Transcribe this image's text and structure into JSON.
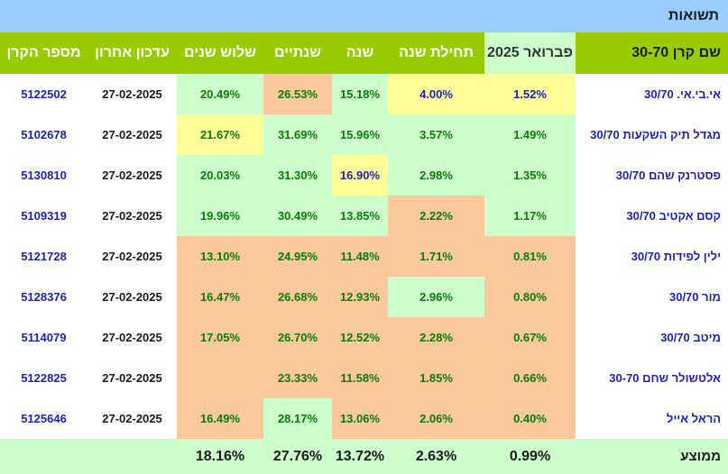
{
  "title": "תשואות",
  "headers": {
    "name": "שם קרן 30-70",
    "feb": "פברואר 2025",
    "ytd": "תחילת שנה",
    "y1": "שנה",
    "y2": "שנתיים",
    "y3": "שלוש שנים",
    "updated": "עדכון אחרון",
    "fund_no": "מספר הקרן"
  },
  "rows": [
    {
      "name": "אי.בי.אי. 30/70",
      "feb": "1.52%",
      "ytd": "4.00%",
      "y1": "15.18%",
      "y2": "26.53%",
      "y3": "20.49%",
      "updated": "27-02-2025",
      "fund_no": "5122502"
    },
    {
      "name": "מגדל תיק השקעות 30/70",
      "feb": "1.49%",
      "ytd": "3.57%",
      "y1": "15.96%",
      "y2": "31.69%",
      "y3": "21.67%",
      "updated": "27-02-2025",
      "fund_no": "5102678"
    },
    {
      "name": "פסטרנק שהם 30/70",
      "feb": "1.35%",
      "ytd": "2.98%",
      "y1": "16.90%",
      "y2": "31.30%",
      "y3": "20.03%",
      "updated": "27-02-2025",
      "fund_no": "5130810"
    },
    {
      "name": "קסם אקטיב 30/70",
      "feb": "1.17%",
      "ytd": "2.22%",
      "y1": "13.85%",
      "y2": "30.49%",
      "y3": "19.96%",
      "updated": "27-02-2025",
      "fund_no": "5109319"
    },
    {
      "name": "ילין לפידות 30/70",
      "feb": "0.81%",
      "ytd": "1.71%",
      "y1": "11.48%",
      "y2": "24.95%",
      "y3": "13.10%",
      "updated": "27-02-2025",
      "fund_no": "5121728"
    },
    {
      "name": "מור 30/70",
      "feb": "0.80%",
      "ytd": "2.96%",
      "y1": "12.93%",
      "y2": "26.68%",
      "y3": "16.47%",
      "updated": "27-02-2025",
      "fund_no": "5128376"
    },
    {
      "name": "מיטב 30/70",
      "feb": "0.67%",
      "ytd": "2.28%",
      "y1": "12.52%",
      "y2": "26.70%",
      "y3": "17.05%",
      "updated": "27-02-2025",
      "fund_no": "5114079"
    },
    {
      "name": "אלטשולר שחם 30-70",
      "feb": "0.66%",
      "ytd": "1.85%",
      "y1": "11.58%",
      "y2": "23.33%",
      "y3": "",
      "updated": "27-02-2025",
      "fund_no": "5122825"
    },
    {
      "name": "הראל אייל",
      "feb": "0.40%",
      "ytd": "2.06%",
      "y1": "13.06%",
      "y2": "28.17%",
      "y3": "16.49%",
      "updated": "27-02-2025",
      "fund_no": "5125646"
    }
  ],
  "average": {
    "label": "ממוצע",
    "feb": "0.99%",
    "ytd": "2.63%",
    "y1": "13.72%",
    "y2": "27.76%",
    "y3": "18.16%"
  },
  "colors": {
    "title_bg": "#99ccff",
    "header_bg": "#99cc00",
    "green": "#ccffcc",
    "yellow": "#ffff99",
    "orange": "#fcc99c"
  }
}
